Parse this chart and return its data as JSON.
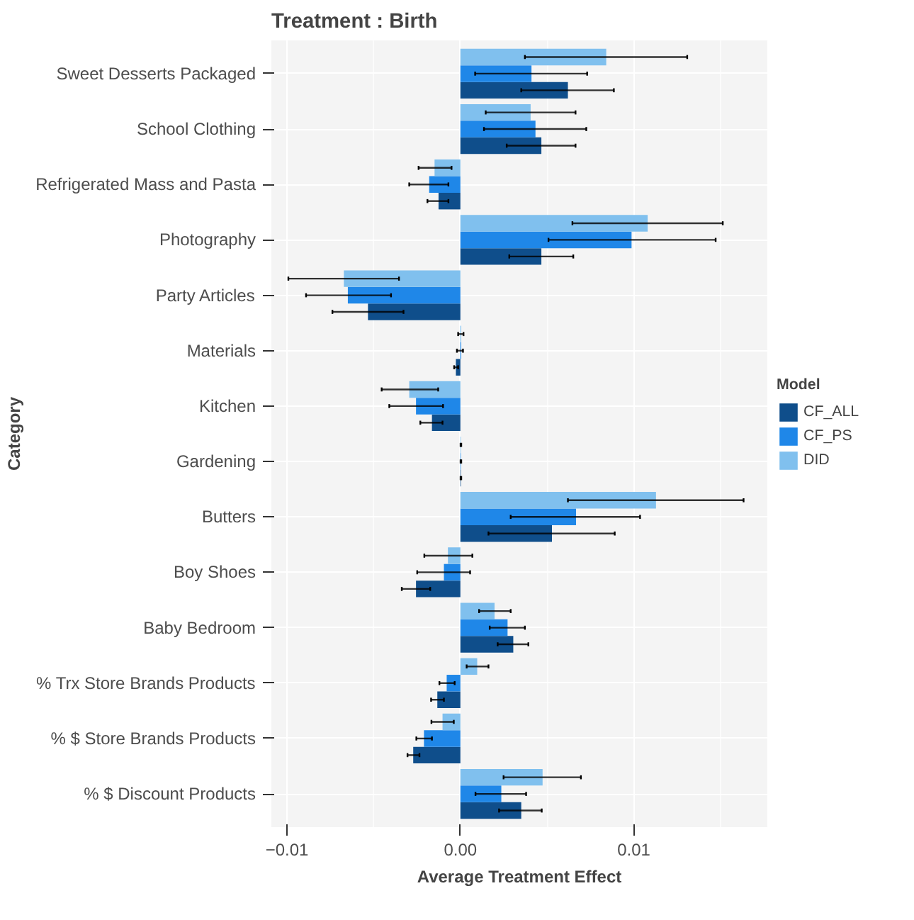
{
  "chart_data": {
    "type": "bar",
    "orientation": "horizontal",
    "title": "Treatment : Birth",
    "xlabel": "Average Treatment Effect",
    "ylabel": "Category",
    "legend_title": "Model",
    "legend": "right",
    "grid": true,
    "categories": [
      "Sweet Desserts Packaged",
      "School Clothing",
      "Refrigerated Mass and Pasta",
      "Photography",
      "Party Articles",
      "Materials",
      "Kitchen",
      "Gardening",
      "Butters",
      "Boy Shoes",
      "Baby Bedroom",
      "% Trx Store Brands Products",
      "% $ Store Brands Products",
      "% $ Discount Products"
    ],
    "xlim": [
      -0.0109,
      0.0177
    ],
    "xticks": [
      {
        "value": -0.01,
        "label": "−0.01"
      },
      {
        "value": 0,
        "label": "0.00"
      },
      {
        "value": 0.01,
        "label": "0.01"
      }
    ],
    "series": [
      {
        "name": "CF_ALL",
        "color": "#0f4e8b",
        "values": [
          0.0062,
          0.00467,
          -0.00126,
          0.00467,
          -0.00533,
          -0.00026,
          -0.00164,
          3e-05,
          0.00528,
          -0.00256,
          0.00305,
          -0.00133,
          -0.00272,
          0.00351
        ],
        "errors": [
          [
            0.00351,
            0.00885
          ],
          [
            0.00267,
            0.00664
          ],
          [
            -0.0019,
            -0.00069
          ],
          [
            0.00282,
            0.00651
          ],
          [
            -0.00738,
            -0.00328
          ],
          [
            -0.00036,
            -0.00013
          ],
          [
            -0.00231,
            -0.00103
          ],
          [
            1e-05,
            5e-05
          ],
          [
            0.00162,
            0.0089
          ],
          [
            -0.00338,
            -0.00174
          ],
          [
            0.00215,
            0.00392
          ],
          [
            -0.00169,
            -0.00095
          ],
          [
            -0.00305,
            -0.00236
          ],
          [
            0.00223,
            0.00469
          ]
        ]
      },
      {
        "name": "CF_PS",
        "color": "#1f87e8",
        "values": [
          0.0041,
          0.00433,
          -0.0018,
          0.00987,
          -0.00649,
          5e-05,
          -0.00256,
          3e-05,
          0.00667,
          -0.00095,
          0.00272,
          -0.00079,
          -0.0021,
          0.00236
        ],
        "errors": [
          [
            0.00085,
            0.00731
          ],
          [
            0.00136,
            0.00726
          ],
          [
            -0.00295,
            -0.00069
          ],
          [
            0.00508,
            0.01472
          ],
          [
            -0.0089,
            -0.004
          ],
          [
            -0.0002,
            0.00015
          ],
          [
            -0.0041,
            -0.001
          ],
          [
            1e-05,
            5e-05
          ],
          [
            0.0029,
            0.01036
          ],
          [
            -0.00249,
            0.00056
          ],
          [
            0.00169,
            0.00372
          ],
          [
            -0.00121,
            -0.00033
          ],
          [
            -0.00254,
            -0.00164
          ],
          [
            0.00087,
            0.00379
          ]
        ]
      },
      {
        "name": "DID",
        "color": "#80c0ee",
        "values": [
          0.00841,
          0.00405,
          -0.00149,
          0.0108,
          -0.00672,
          5e-05,
          -0.00295,
          3e-05,
          0.01128,
          -0.00072,
          0.00197,
          0.00097,
          -0.00103,
          0.00474
        ],
        "errors": [
          [
            0.00372,
            0.01308
          ],
          [
            0.00146,
            0.00664
          ],
          [
            -0.00241,
            -0.00051
          ],
          [
            0.00646,
            0.01513
          ],
          [
            -0.00992,
            -0.00354
          ],
          [
            -0.00013,
            0.00018
          ],
          [
            -0.00454,
            -0.00128
          ],
          [
            1e-05,
            5e-05
          ],
          [
            0.0062,
            0.01633
          ],
          [
            -0.00208,
            0.00069
          ],
          [
            0.00108,
            0.0029
          ],
          [
            0.00036,
            0.00162
          ],
          [
            -0.00167,
            -0.00038
          ],
          [
            0.00249,
            0.00695
          ]
        ]
      }
    ]
  }
}
